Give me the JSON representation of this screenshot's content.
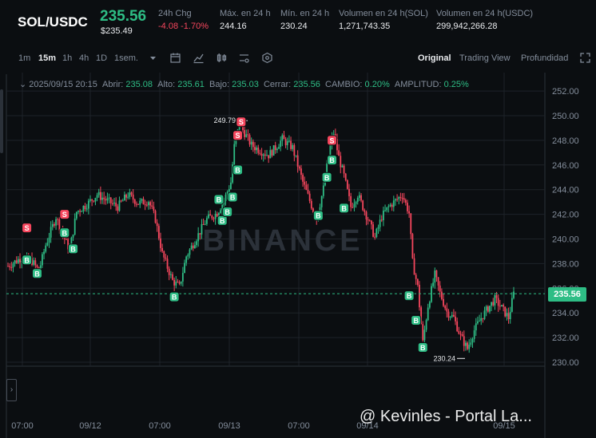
{
  "header": {
    "symbol": "SOL/USDC",
    "last_price": "235.56",
    "usd_price": "$235.49",
    "stats": [
      {
        "label": "24h Chg",
        "value": "-4.08 -1.70%",
        "neg": true
      },
      {
        "label": "Máx. en 24 h",
        "value": "244.16"
      },
      {
        "label": "Mín. en 24 h",
        "value": "230.24"
      },
      {
        "label": "Volumen en 24 h(SOL)",
        "value": "1,271,743.35"
      },
      {
        "label": "Volumen en 24 h(USDC)",
        "value": "299,942,266.28"
      }
    ]
  },
  "toolbar": {
    "intervals": [
      "1m",
      "15m",
      "1h",
      "4h",
      "1D",
      "1sem."
    ],
    "active_interval": "15m",
    "views": [
      "Original",
      "Trading View",
      "Profundidad"
    ],
    "active_view": "Original",
    "icons": [
      "dropdown-caret-icon",
      "calendar-icon",
      "line-chart-icon",
      "candles-icon",
      "settings-icon",
      "hexagon-icon",
      "expand-icon"
    ]
  },
  "ohlc": {
    "datetime": "2025/09/15 20:15",
    "open_label": "Abrir:",
    "open": "235.08",
    "high_label": "Alto:",
    "high": "235.61",
    "low_label": "Bajo:",
    "low": "235.03",
    "close_label": "Cerrar:",
    "close": "235.56",
    "change_label": "CAMBIO:",
    "change": "0.20%",
    "amp_label": "AMPLITUD:",
    "amp": "0.25%"
  },
  "chart_data": {
    "type": "candlestick",
    "ylim": [
      229.3,
      253.0
    ],
    "y_ticks": [
      "252.00",
      "250.00",
      "248.00",
      "246.00",
      "244.00",
      "242.00",
      "240.00",
      "238.00",
      "236.00",
      "234.00",
      "232.00",
      "230.00"
    ],
    "x_ticks": [
      "07:00",
      "09/12",
      "07:00",
      "09/13",
      "07:00",
      "09/14",
      "09/15"
    ],
    "current_price": "235.56",
    "high_label": "249.79",
    "low_label": "230.24",
    "watermark": "BINANCE",
    "anchors": [
      [
        0,
        237.8
      ],
      [
        8,
        238.5
      ],
      [
        14,
        238.2
      ],
      [
        18,
        237.4
      ],
      [
        22,
        239.5
      ],
      [
        28,
        241.8
      ],
      [
        32,
        240.3
      ],
      [
        36,
        239.1
      ],
      [
        40,
        242.2
      ],
      [
        46,
        242.8
      ],
      [
        52,
        243.6
      ],
      [
        58,
        243.1
      ],
      [
        64,
        242.6
      ],
      [
        70,
        243.6
      ],
      [
        76,
        242.9
      ],
      [
        82,
        243.1
      ],
      [
        86,
        241.6
      ],
      [
        90,
        238.8
      ],
      [
        96,
        236.6
      ],
      [
        100,
        236.1
      ],
      [
        104,
        238.6
      ],
      [
        110,
        240.1
      ],
      [
        116,
        241.6
      ],
      [
        122,
        242.1
      ],
      [
        126,
        243.1
      ],
      [
        130,
        244.6
      ],
      [
        132,
        247.5
      ],
      [
        135,
        249.3
      ],
      [
        138,
        248.6
      ],
      [
        142,
        247.6
      ],
      [
        148,
        247.1
      ],
      [
        152,
        246.8
      ],
      [
        156,
        247.4
      ],
      [
        160,
        248.1
      ],
      [
        166,
        247.4
      ],
      [
        172,
        244.6
      ],
      [
        176,
        243.1
      ],
      [
        180,
        241.6
      ],
      [
        184,
        244.1
      ],
      [
        188,
        247.6
      ],
      [
        190,
        248.6
      ],
      [
        193,
        246.6
      ],
      [
        196,
        245.1
      ],
      [
        200,
        242.6
      ],
      [
        204,
        243.6
      ],
      [
        210,
        241.6
      ],
      [
        214,
        240.1
      ],
      [
        218,
        241.8
      ],
      [
        222,
        242.6
      ],
      [
        226,
        243.1
      ],
      [
        230,
        243.6
      ],
      [
        234,
        242.1
      ],
      [
        236,
        238.1
      ],
      [
        239,
        236.1
      ],
      [
        242,
        231.6
      ],
      [
        245,
        234.6
      ],
      [
        249,
        237.1
      ],
      [
        252,
        235.6
      ],
      [
        256,
        234.1
      ],
      [
        260,
        233.6
      ],
      [
        264,
        232.1
      ],
      [
        268,
        231.1
      ],
      [
        272,
        232.6
      ],
      [
        276,
        233.6
      ],
      [
        280,
        234.4
      ],
      [
        284,
        235.1
      ],
      [
        288,
        234.4
      ],
      [
        292,
        233.6
      ],
      [
        295,
        235.56
      ]
    ],
    "markers": [
      {
        "t": "S",
        "i": 11,
        "p": 240.9
      },
      {
        "t": "B",
        "i": 11,
        "p": 238.3
      },
      {
        "t": "B",
        "i": 17,
        "p": 237.2
      },
      {
        "t": "S",
        "i": 33,
        "p": 242.0
      },
      {
        "t": "B",
        "i": 33,
        "p": 240.5
      },
      {
        "t": "B",
        "i": 38,
        "p": 239.2
      },
      {
        "t": "B",
        "i": 97,
        "p": 235.3
      },
      {
        "t": "B",
        "i": 123,
        "p": 243.2
      },
      {
        "t": "B",
        "i": 125,
        "p": 241.5
      },
      {
        "t": "B",
        "i": 128,
        "p": 242.2
      },
      {
        "t": "B",
        "i": 131,
        "p": 243.4
      },
      {
        "t": "S",
        "i": 134,
        "p": 248.4
      },
      {
        "t": "S",
        "i": 136,
        "p": 249.5
      },
      {
        "t": "B",
        "i": 134,
        "p": 245.6
      },
      {
        "t": "S",
        "i": 189,
        "p": 248.0
      },
      {
        "t": "B",
        "i": 189,
        "p": 246.4
      },
      {
        "t": "B",
        "i": 186,
        "p": 245.0
      },
      {
        "t": "B",
        "i": 181,
        "p": 241.9
      },
      {
        "t": "B",
        "i": 196,
        "p": 242.5
      },
      {
        "t": "B",
        "i": 234,
        "p": 235.4
      },
      {
        "t": "B",
        "i": 238,
        "p": 233.4
      },
      {
        "t": "B",
        "i": 242,
        "p": 231.2
      }
    ],
    "colors": {
      "up": "#2ebd85",
      "down": "#f6465d",
      "grid": "#1e2329",
      "axis": "#848e9c"
    }
  },
  "watermark_text": "@ Kevinles - Portal La..."
}
